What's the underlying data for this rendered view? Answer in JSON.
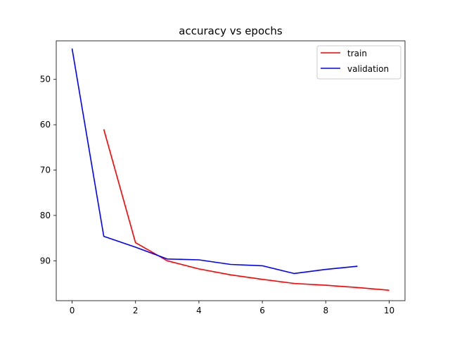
{
  "chart_data": {
    "type": "line",
    "title": "accuracy vs epochs",
    "xlabel": "",
    "ylabel": "",
    "xlim": [
      -0.5,
      10.5
    ],
    "ylim": [
      41.5,
      98.8
    ],
    "y_inverted": true,
    "x_ticks": [
      0,
      2,
      4,
      6,
      8,
      10
    ],
    "y_ticks": [
      50,
      60,
      70,
      80,
      90
    ],
    "grid": false,
    "legend_position": "upper-right",
    "series": [
      {
        "name": "train",
        "color": "#ff0000",
        "x": [
          1,
          2,
          3,
          4,
          5,
          6,
          7,
          8,
          9,
          10
        ],
        "y": [
          61.0,
          86.0,
          90.0,
          91.8,
          93.1,
          94.1,
          95.0,
          95.4,
          95.9,
          96.5
        ]
      },
      {
        "name": "validation",
        "color": "#0000ff",
        "x": [
          0,
          1,
          2,
          3,
          4,
          5,
          6,
          7,
          8,
          9
        ],
        "y": [
          43.2,
          84.6,
          87.0,
          89.6,
          89.8,
          90.8,
          91.1,
          92.8,
          91.9,
          91.2
        ]
      }
    ]
  }
}
